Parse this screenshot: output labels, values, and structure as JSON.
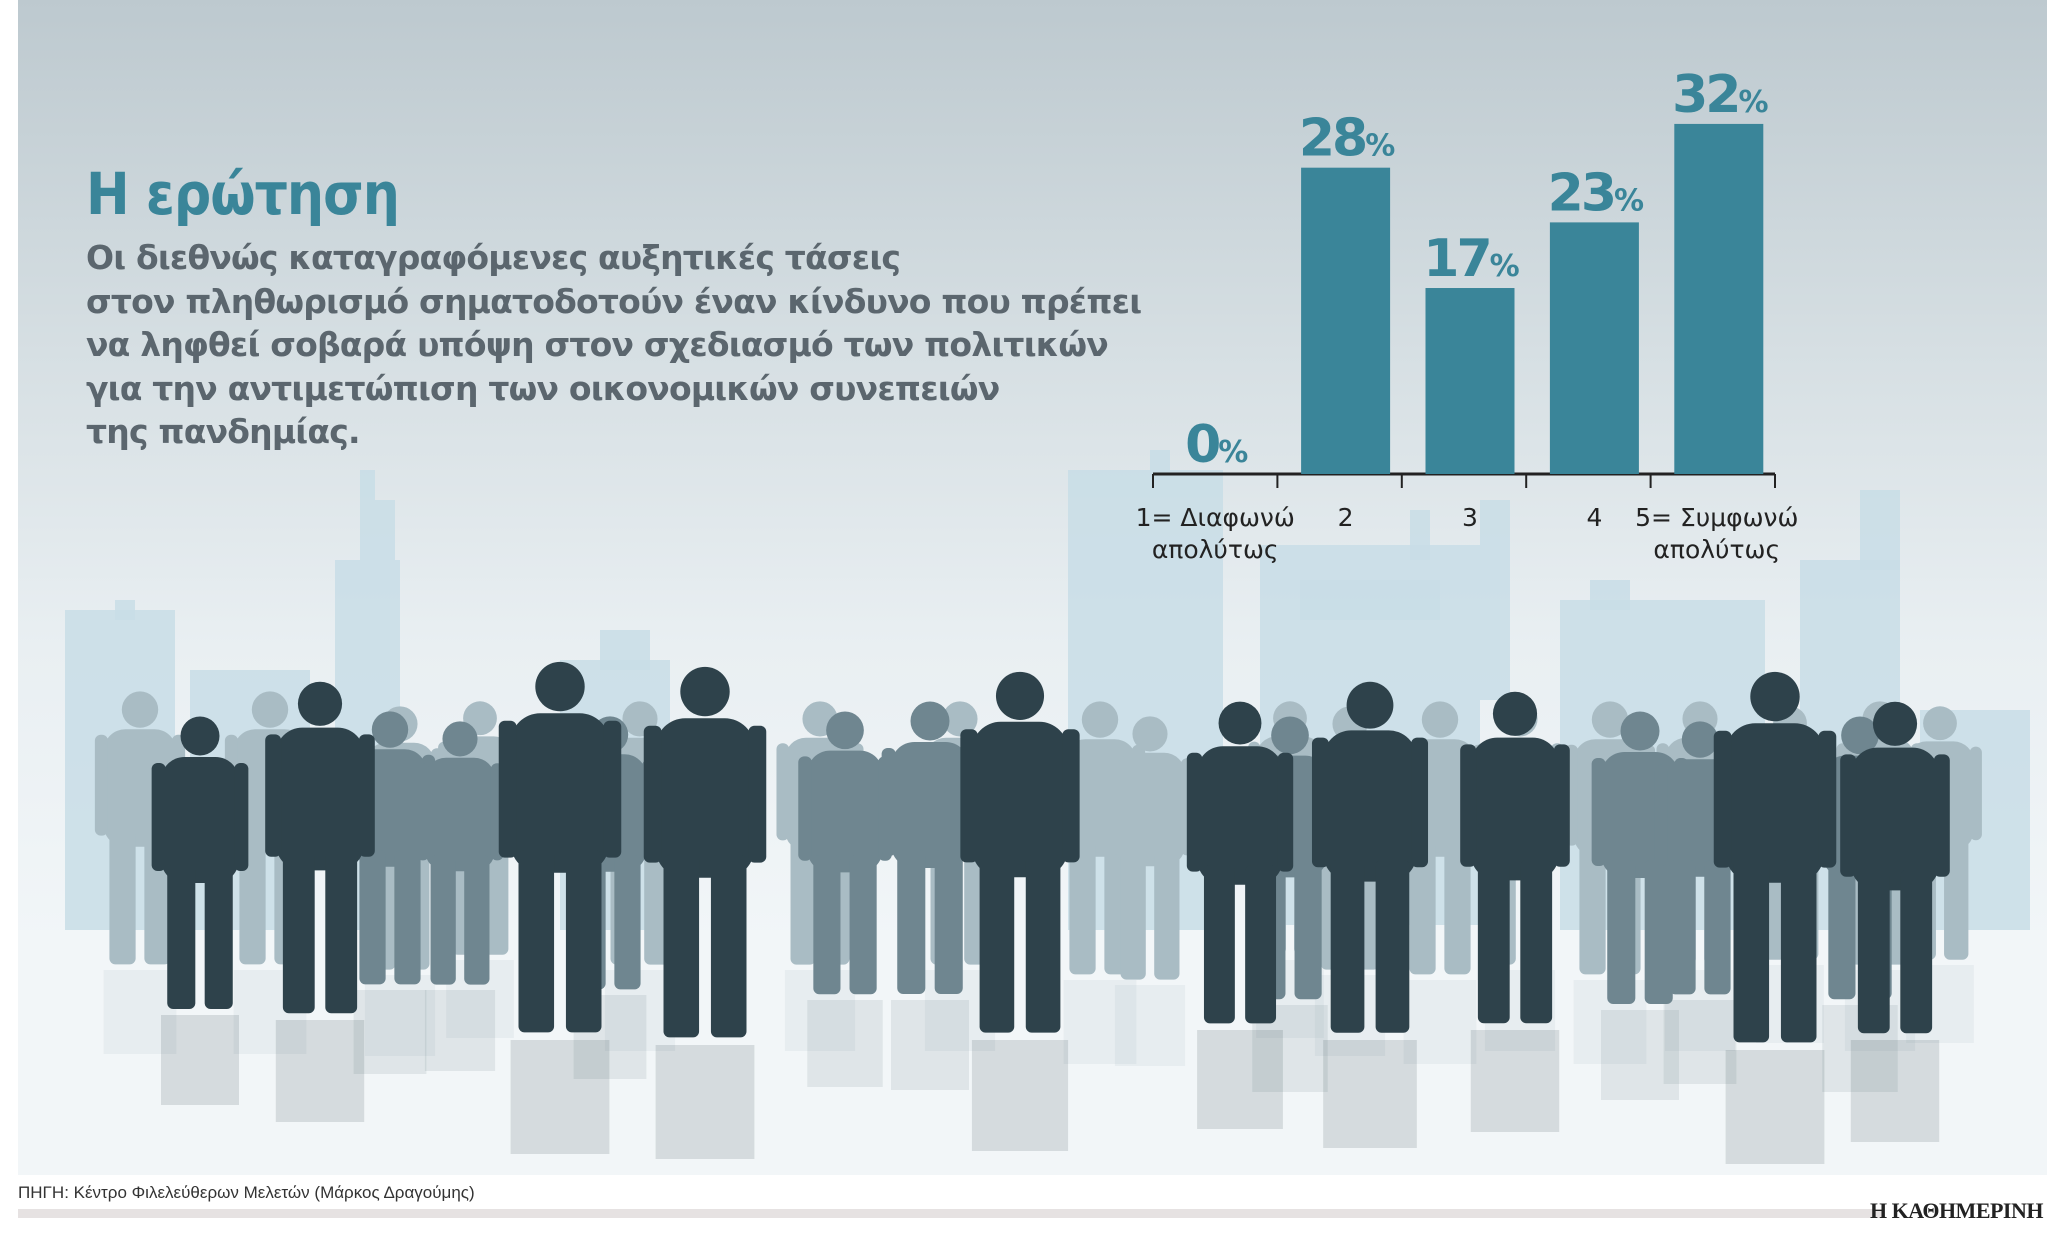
{
  "title": "Η ερώτηση",
  "question_lines": [
    "Οι διεθνώς καταγραφόμενες αυξητικές τάσεις",
    "στον πληθωρισμό σηματοδοτούν έναν κίνδυνο που πρέπει",
    "να ληφθεί σοβαρά υπόψη στον σχεδιασμό των πολιτικών",
    "για την αντιμετώπιση των οικονομικών συνεπειών",
    "της πανδημίας."
  ],
  "source": "ΠΗΓΗ: Κέντρο Φιλελεύθερων Μελετών (Μάρκος Δραγούμης)",
  "brand": "Η ΚΑΘΗΜΕΡΙΝΗ",
  "chart_data": {
    "type": "bar",
    "categories": [
      [
        "1= Διαφωνώ",
        "απολύτως"
      ],
      [
        "2"
      ],
      [
        "3"
      ],
      [
        "4"
      ],
      [
        "5= Συμφωνώ",
        "απολύτως"
      ]
    ],
    "values": [
      0,
      28,
      17,
      23,
      32
    ],
    "data_labels": [
      "0",
      "28",
      "17",
      "23",
      "32"
    ],
    "unit": "%",
    "ylim": [
      0,
      32
    ],
    "grid": false,
    "bar_color": "#3a8599",
    "label_color": "#3a8599"
  }
}
